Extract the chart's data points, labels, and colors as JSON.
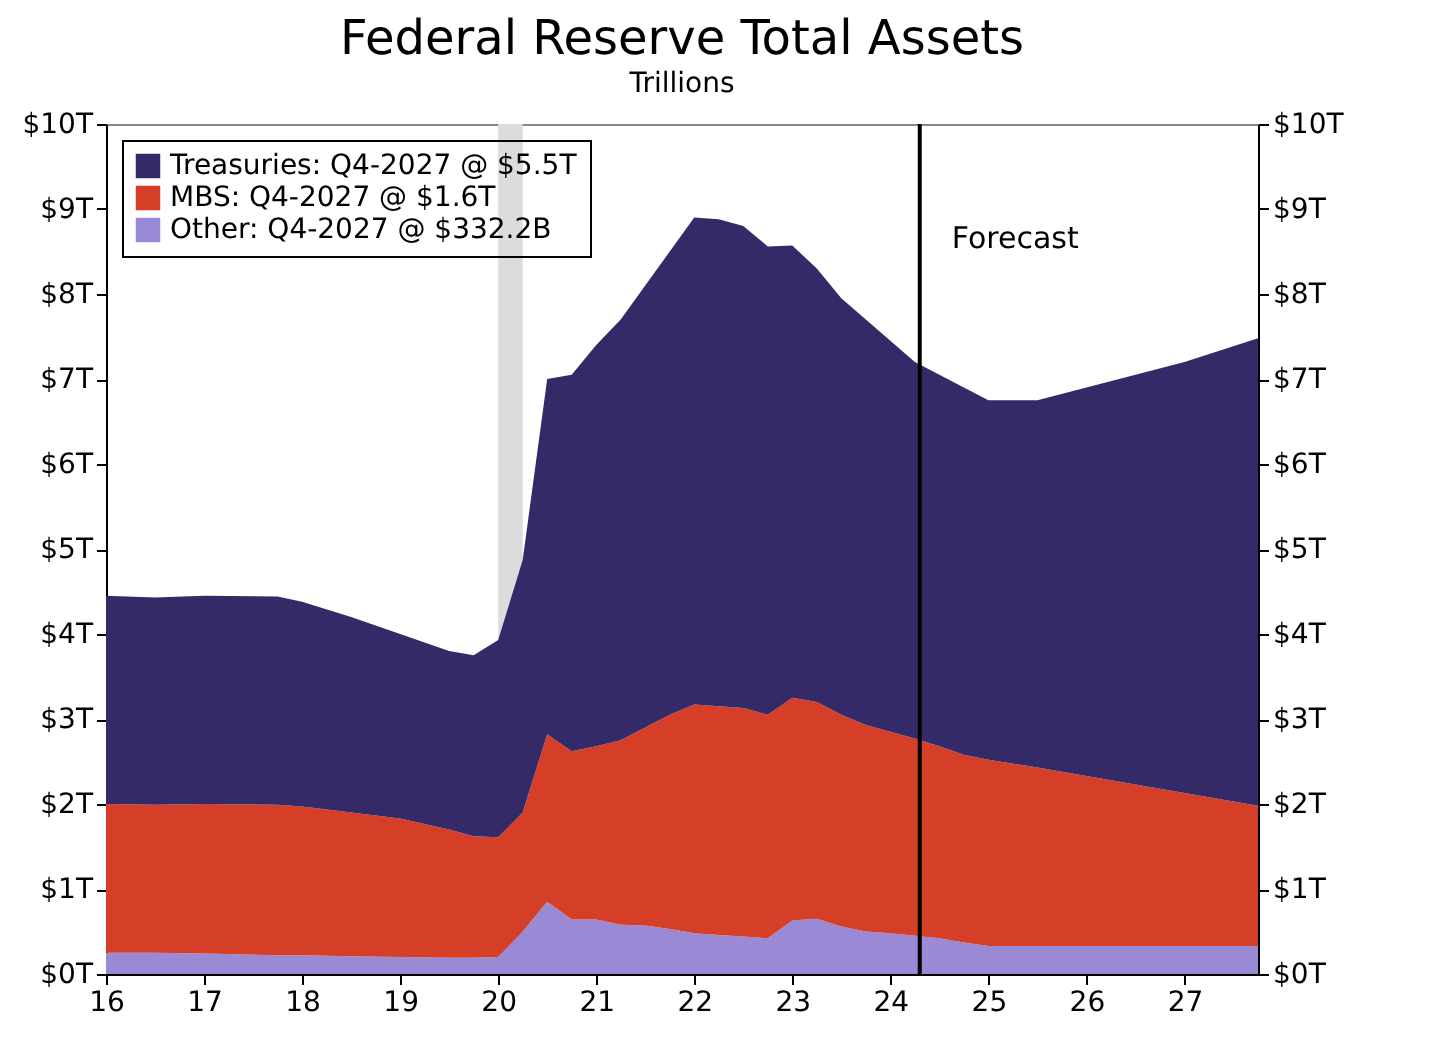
{
  "chart_data": {
    "type": "area",
    "title": "Federal Reserve Total Assets",
    "subtitle": "Trillions",
    "stacked": true,
    "x": [
      16,
      16.5,
      17,
      17.75,
      18,
      18.5,
      19,
      19.5,
      19.75,
      20,
      20.25,
      20.5,
      20.75,
      21,
      21.25,
      21.5,
      21.75,
      22,
      22.25,
      22.5,
      22.75,
      23,
      23.25,
      23.5,
      23.75,
      24,
      24.25,
      24.5,
      24.75,
      25,
      25.5,
      26,
      27,
      27.75
    ],
    "series": [
      {
        "name": "Other: Q4-2027 @ $332.2B",
        "color": "#9a8ad6",
        "values": [
          0.25,
          0.25,
          0.24,
          0.22,
          0.22,
          0.21,
          0.2,
          0.19,
          0.19,
          0.2,
          0.5,
          0.85,
          0.64,
          0.64,
          0.58,
          0.57,
          0.53,
          0.48,
          0.46,
          0.44,
          0.42,
          0.63,
          0.65,
          0.56,
          0.5,
          0.48,
          0.45,
          0.42,
          0.37,
          0.33,
          0.33,
          0.33,
          0.33,
          0.33
        ]
      },
      {
        "name": "MBS: Q4-2027 @ $1.6T",
        "color": "#d63f27",
        "values": [
          1.75,
          1.74,
          1.76,
          1.77,
          1.75,
          1.69,
          1.63,
          1.51,
          1.43,
          1.41,
          1.4,
          1.97,
          1.98,
          2.04,
          2.17,
          2.33,
          2.52,
          2.69,
          2.69,
          2.69,
          2.63,
          2.62,
          2.55,
          2.49,
          2.43,
          2.37,
          2.32,
          2.26,
          2.21,
          2.19,
          2.1,
          2.0,
          1.8,
          1.65
        ]
      },
      {
        "name": "Treasuries: Q4-2027 @ $5.5T",
        "color": "#352a68",
        "values": [
          2.45,
          2.44,
          2.45,
          2.45,
          2.41,
          2.3,
          2.17,
          2.1,
          2.13,
          2.32,
          2.97,
          4.18,
          4.43,
          4.72,
          4.95,
          5.2,
          5.45,
          5.73,
          5.73,
          5.67,
          5.51,
          5.32,
          5.1,
          4.9,
          4.77,
          4.6,
          4.43,
          4.37,
          4.32,
          4.23,
          4.32,
          4.57,
          5.07,
          5.5
        ]
      }
    ],
    "xlim": [
      16,
      27.75
    ],
    "xticks": [
      16,
      17,
      18,
      19,
      20,
      21,
      22,
      23,
      24,
      25,
      26,
      27
    ],
    "ylim": [
      0,
      10
    ],
    "yticks": [
      {
        "value": 0,
        "label": "$0T"
      },
      {
        "value": 1,
        "label": "$1T"
      },
      {
        "value": 2,
        "label": "$2T"
      },
      {
        "value": 3,
        "label": "$3T"
      },
      {
        "value": 4,
        "label": "$4T"
      },
      {
        "value": 5,
        "label": "$5T"
      },
      {
        "value": 6,
        "label": "$6T"
      },
      {
        "value": 7,
        "label": "$7T"
      },
      {
        "value": 8,
        "label": "$8T"
      },
      {
        "value": 9,
        "label": "$9T"
      },
      {
        "value": 10,
        "label": "$10T"
      }
    ],
    "y2lim": [
      0,
      10
    ],
    "y2ticks": [
      {
        "value": 0,
        "label": "$0T"
      },
      {
        "value": 1,
        "label": "$1T"
      },
      {
        "value": 2,
        "label": "$2T"
      },
      {
        "value": 3,
        "label": "$3T"
      },
      {
        "value": 4,
        "label": "$4T"
      },
      {
        "value": 5,
        "label": "$5T"
      },
      {
        "value": 6,
        "label": "$6T"
      },
      {
        "value": 7,
        "label": "$7T"
      },
      {
        "value": 8,
        "label": "$8T"
      },
      {
        "value": 9,
        "label": "$9T"
      },
      {
        "value": 10,
        "label": "$10T"
      }
    ],
    "bands": [
      {
        "axis": "x",
        "from": 20,
        "to": 20.25,
        "color": "#dcdcdc"
      }
    ],
    "ref_lines": [
      {
        "axis": "x",
        "value": 24.3,
        "color": "#000000"
      }
    ],
    "annotations": [
      "Forecast"
    ],
    "grid": false,
    "legend": "top left"
  }
}
